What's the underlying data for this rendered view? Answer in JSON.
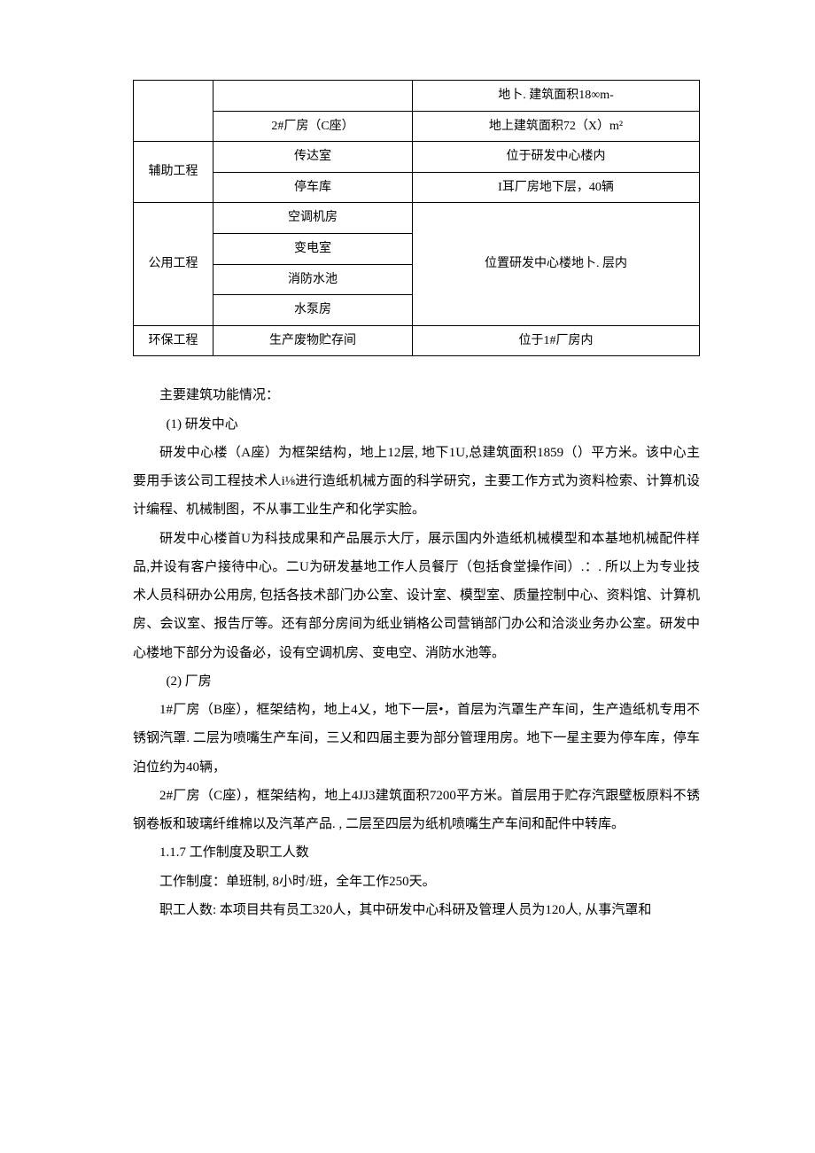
{
  "table": {
    "r0c2": "地卜. 建筑面积18∞m-",
    "r1c1": "2#厂房（C座）",
    "r1c2": "地上建筑面积72（X）m²",
    "r2c0": "辅助工程",
    "r2c1": "传达室",
    "r2c2": "位于研发中心楼内",
    "r3c1": "停车库",
    "r3c2": "I耳厂房地下层，40辆",
    "r4c0": "公用工程",
    "r4c1": "空调机房",
    "r4c2": "位置研发中心楼地卜. 层内",
    "r5c1": "变电室",
    "r6c1": "消防水池",
    "r7c1": "水泵房",
    "r8c0": "环保工程",
    "r8c1": "生产废物贮存间",
    "r8c2": "位于1#厂房内"
  },
  "body": {
    "p0": "主要建筑功能情况：",
    "p1": "(1) 研发中心",
    "p2": "研发中心楼（A座）为框架结构，地上12层, 地下1U,总建筑面积1859（）平方米。该中心主要用手该公司工程技术人i⅛进行造纸机械方面的科学研究，主要工作方式为资料检索、计算机设计编程、机械制图，不从事工业生产和化学实脸。",
    "p3": "研发中心楼首U为科技成果和产品展示大厅，展示国内外造纸机械模型和本基地机械配件样品,并设有客户接待中心。二U为研发基地工作人员餐厅（包括食堂操作间）.：. 所以上为专业技术人员科研办公用房, 包括各技术部门办公室、设计室、模型室、质量控制中心、资料馆、计算机房、会议室、报告厅等。还有部分房间为纸业销格公司营销部门办公和洽淡业务办公室。研发中心楼地下部分为设备必，设有空调机房、变电空、消防水池等。",
    "p4": "(2) 厂房",
    "p5": "1#厂房（B座），框架结构，地上4乂，地下一层•，首层为汽罩生产车间，生产造纸机专用不锈钢汽罩. 二层为喷嘴生产车间，三乂和四届主要为部分管理用房。地下一星主要为停车库，停车泊位约为40辆，",
    "p6": "2#厂房（C座），框架结构，地上4JJ3建筑面积7200平方米。首层用于贮存汽跟壁板原料不锈钢卷板和玻璃纤维棉以及汽革产品. , 二层至四层为纸机喷嘴生产车间和配件中转库。",
    "p7": "1.1.7   工作制度及职工人数",
    "p8": "工作制度：单班制, 8小时/班，全年工作250天。",
    "p9": "职工人数: 本项目共有员工320人，其中研发中心科研及管理人员为120人, 从事汽罩和"
  }
}
